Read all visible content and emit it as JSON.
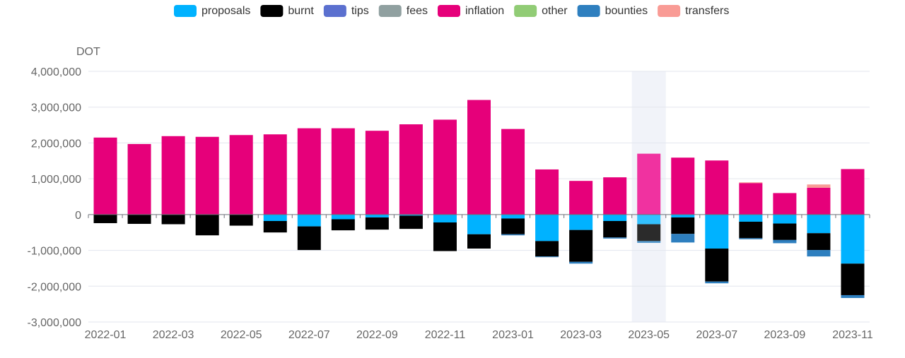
{
  "chart_data": {
    "type": "bar",
    "stacked": true,
    "ylabel": "DOT",
    "ylim": [
      -3000000,
      4000000
    ],
    "yticks": [
      4000000,
      3000000,
      2000000,
      1000000,
      0,
      -1000000,
      -2000000,
      -3000000
    ],
    "ytick_labels": [
      "4,000,000",
      "3,000,000",
      "2,000,000",
      "1,000,000",
      "0",
      "-1,000,000",
      "-2,000,000",
      "-3,000,000"
    ],
    "categories": [
      "2022-01",
      "2022-02",
      "2022-03",
      "2022-04",
      "2022-05",
      "2022-06",
      "2022-07",
      "2022-08",
      "2022-09",
      "2022-10",
      "2022-11",
      "2022-12",
      "2023-01",
      "2023-02",
      "2023-03",
      "2023-04",
      "2023-05",
      "2023-06",
      "2023-07",
      "2023-08",
      "2023-09",
      "2023-10",
      "2023-11"
    ],
    "xtick_labels": [
      "2022-01",
      "2022-03",
      "2022-05",
      "2022-07",
      "2022-09",
      "2022-11",
      "2023-01",
      "2023-03",
      "2023-05",
      "2023-07",
      "2023-09",
      "2023-11"
    ],
    "highlight_category": "2023-05",
    "legend_position": "top-center",
    "series": [
      {
        "name": "proposals",
        "color": "#00b2ff",
        "values": [
          0,
          0,
          0,
          0,
          0,
          -180000,
          -330000,
          -130000,
          -80000,
          -30000,
          -220000,
          -550000,
          -110000,
          -740000,
          -430000,
          -180000,
          -270000,
          -80000,
          -950000,
          -200000,
          -250000,
          -520000,
          -1370000
        ]
      },
      {
        "name": "burnt",
        "color": "#000000",
        "values": [
          -240000,
          -260000,
          -270000,
          -580000,
          -310000,
          -320000,
          -660000,
          -310000,
          -340000,
          -370000,
          -800000,
          -400000,
          -440000,
          -430000,
          -890000,
          -460000,
          -470000,
          -460000,
          -920000,
          -460000,
          -460000,
          -470000,
          -880000
        ]
      },
      {
        "name": "tips",
        "color": "#5b70cf",
        "values": [
          0,
          0,
          0,
          0,
          0,
          0,
          0,
          0,
          0,
          0,
          0,
          0,
          0,
          0,
          0,
          0,
          0,
          0,
          0,
          0,
          0,
          0,
          0
        ]
      },
      {
        "name": "fees",
        "color": "#90a0a0",
        "values": [
          0,
          0,
          0,
          0,
          0,
          0,
          0,
          0,
          0,
          0,
          0,
          0,
          0,
          0,
          0,
          0,
          0,
          0,
          0,
          0,
          0,
          0,
          0
        ]
      },
      {
        "name": "inflation",
        "color": "#e6007a",
        "values": [
          2150000,
          1970000,
          2190000,
          2170000,
          2220000,
          2240000,
          2410000,
          2410000,
          2340000,
          2520000,
          2650000,
          3200000,
          2390000,
          1260000,
          940000,
          1040000,
          1700000,
          1590000,
          1510000,
          880000,
          600000,
          750000,
          1270000
        ]
      },
      {
        "name": "other",
        "color": "#91cc75",
        "values": [
          0,
          0,
          0,
          0,
          0,
          0,
          0,
          0,
          0,
          0,
          0,
          0,
          0,
          0,
          0,
          0,
          0,
          0,
          0,
          0,
          0,
          0,
          0
        ]
      },
      {
        "name": "bounties",
        "color": "#2e7fbf",
        "values": [
          0,
          0,
          0,
          0,
          0,
          0,
          0,
          0,
          0,
          0,
          0,
          0,
          -30000,
          -20000,
          -50000,
          -30000,
          -50000,
          -240000,
          -50000,
          -30000,
          -90000,
          -180000,
          -80000
        ]
      },
      {
        "name": "transfers",
        "color": "#f99b95",
        "values": [
          0,
          0,
          0,
          0,
          0,
          0,
          0,
          0,
          0,
          0,
          0,
          0,
          0,
          0,
          0,
          0,
          0,
          0,
          0,
          20000,
          0,
          90000,
          0
        ]
      }
    ]
  }
}
